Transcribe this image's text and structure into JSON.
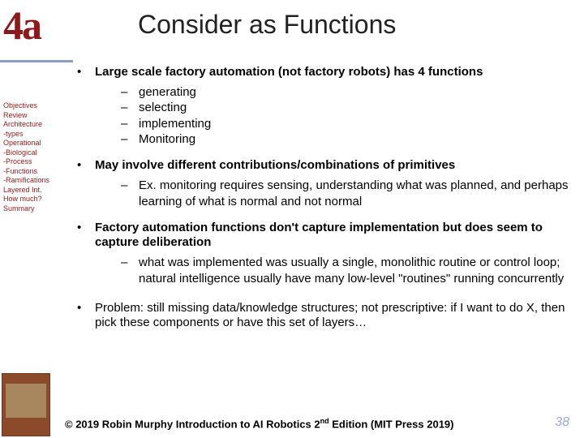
{
  "chapter_number": "4a",
  "title": "Consider as Functions",
  "colors": {
    "accent": "#8b1a1a",
    "sidebar_rule": "#8b9dc3",
    "page_num": "#9aa9c9",
    "text": "#000000",
    "bg": "#ffffff"
  },
  "fonts": {
    "chapter_family": "Times New Roman",
    "chapter_size_pt": 40,
    "title_size_pt": 26,
    "body_size_pt": 12,
    "sidebar_size_pt": 7
  },
  "sidebar": {
    "items": [
      "Objectives",
      "Review",
      "Architecture",
      "-types",
      "Operational",
      "-Biological",
      "-Process",
      "-Functions",
      "-Ramifications",
      "Layered Int.",
      "How much?",
      "Summary"
    ]
  },
  "bullets": [
    {
      "text": "Large scale factory automation (not factory robots) has 4 functions",
      "bold": true,
      "subs": [
        "generating",
        "selecting",
        "implementing",
        "Monitoring"
      ]
    },
    {
      "text": "May involve different contributions/combinations of primitives",
      "bold": true,
      "subs": [
        "Ex. monitoring requires sensing, understanding what was planned, and perhaps learning of what is normal and not normal"
      ]
    },
    {
      "text": "Factory automation functions don't capture implementation but does seem to capture deliberation",
      "bold": true,
      "subs": [
        "what was implemented was usually a single, monolithic routine or control loop; natural intelligence usually have many low-level \"routines\" running concurrently"
      ]
    },
    {
      "text": "Problem: still missing data/knowledge structures; not prescriptive: if I want to do X, then pick these components or have this set of layers…",
      "bold": false,
      "subs": []
    }
  ],
  "copyright": {
    "prefix": "© 2019 Robin Murphy Introduction to AI Robotics 2",
    "sup": "nd",
    "suffix": " Edition (MIT Press 2019)"
  },
  "page_number": "38"
}
